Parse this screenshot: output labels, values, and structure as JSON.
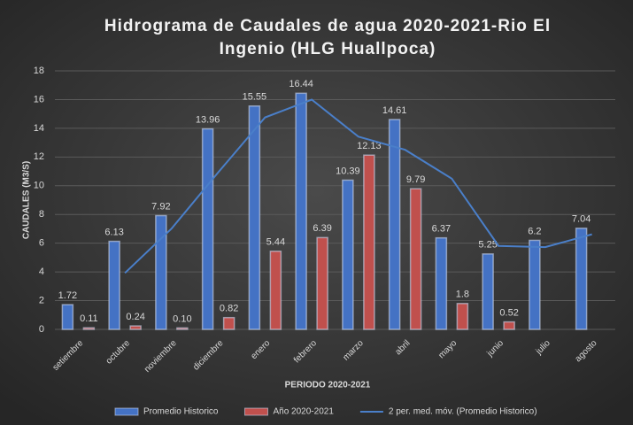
{
  "chart_data": {
    "type": "bar",
    "title": [
      "Hidrograma de Caudales de agua 2020-2021-Rio El",
      "Ingenio (HLG Huallpoca)"
    ],
    "x_label": "PERIODO 2020-2021",
    "y_label": "CAUDALES (M3/S)",
    "categories": [
      "setiembre",
      "octubre",
      "noviembre",
      "diciembre",
      "enero",
      "febrero",
      "marzo",
      "abril",
      "mayo",
      "junio",
      "julio",
      "agosto"
    ],
    "series": [
      {
        "name": "Promedio Historico",
        "type": "bar",
        "color": "#4472c4",
        "values": [
          1.72,
          6.13,
          7.92,
          13.96,
          15.55,
          16.44,
          10.39,
          14.61,
          6.37,
          5.25,
          6.2,
          7.04
        ],
        "value_labels": [
          "1.72",
          "6.13",
          "7.92",
          "13.96",
          "15.55",
          "16.44",
          "10.39",
          "14.61",
          "6.37",
          "5.25",
          "6.2",
          "7.04"
        ]
      },
      {
        "name": "Año 2020-2021",
        "type": "bar",
        "color": "#c0504d",
        "values": [
          0.11,
          0.24,
          0.1,
          0.82,
          5.44,
          6.39,
          12.13,
          9.79,
          1.8,
          0.52,
          null,
          null
        ],
        "value_labels": [
          "0.11",
          "0.24",
          "0.10",
          "0.82",
          "5.44",
          "6.39",
          "12.13",
          "9.79",
          "1.8",
          "0.52",
          null,
          null
        ]
      },
      {
        "name": "2 per. med. móv. (Promedio Historico)",
        "type": "line",
        "color": "#4a7fc9",
        "values": [
          null,
          3.925,
          7.025,
          10.94,
          14.755,
          15.995,
          13.415,
          12.5,
          10.49,
          5.81,
          5.725,
          6.62
        ]
      }
    ],
    "ylim": [
      0,
      18
    ],
    "yticks": [
      0,
      2,
      4,
      6,
      8,
      10,
      12,
      14,
      16,
      18
    ],
    "grid": true,
    "legend": "bottom"
  }
}
